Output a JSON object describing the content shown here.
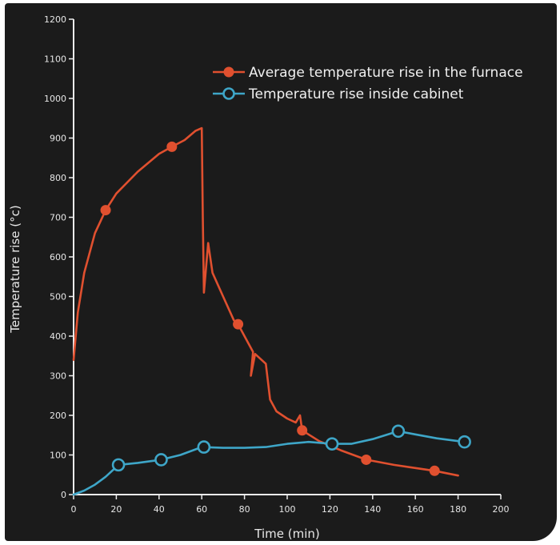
{
  "chart_data": {
    "type": "line",
    "title": "",
    "xlabel": "Time (min)",
    "ylabel": "Temperature rise (°c)",
    "xlim": [
      0,
      200
    ],
    "ylim": [
      0,
      1200
    ],
    "x_ticks": [
      0,
      20,
      40,
      60,
      80,
      100,
      120,
      140,
      160,
      180,
      200
    ],
    "y_ticks": [
      0,
      100,
      200,
      300,
      400,
      500,
      600,
      700,
      800,
      900,
      1000,
      1100,
      1200
    ],
    "grid": false,
    "legend_position": "top-right",
    "series": [
      {
        "name": "Average temperature rise in the furnace",
        "color": "#e0502f",
        "marker": "filled-circle",
        "curve": [
          [
            0,
            340
          ],
          [
            2,
            460
          ],
          [
            5,
            560
          ],
          [
            10,
            660
          ],
          [
            15,
            718
          ],
          [
            20,
            760
          ],
          [
            30,
            815
          ],
          [
            40,
            860
          ],
          [
            46,
            878
          ],
          [
            52,
            895
          ],
          [
            57,
            918
          ],
          [
            60,
            925
          ],
          [
            60.5,
            700
          ],
          [
            61,
            510
          ],
          [
            63,
            635
          ],
          [
            65,
            560
          ],
          [
            70,
            500
          ],
          [
            75,
            440
          ],
          [
            77,
            430
          ],
          [
            80,
            400
          ],
          [
            84,
            360
          ],
          [
            83,
            300
          ],
          [
            85,
            355
          ],
          [
            90,
            330
          ],
          [
            92,
            240
          ],
          [
            95,
            210
          ],
          [
            100,
            192
          ],
          [
            104,
            182
          ],
          [
            106,
            200
          ],
          [
            107,
            162
          ],
          [
            115,
            135
          ],
          [
            125,
            112
          ],
          [
            137,
            88
          ],
          [
            150,
            75
          ],
          [
            160,
            67
          ],
          [
            169,
            60
          ],
          [
            180,
            48
          ]
        ],
        "markers": [
          [
            15,
            718
          ],
          [
            46,
            878
          ],
          [
            77,
            430
          ],
          [
            107,
            162
          ],
          [
            137,
            88
          ],
          [
            169,
            60
          ]
        ]
      },
      {
        "name": "Temperature rise inside cabinet",
        "color": "#3ea6c8",
        "marker": "open-circle",
        "curve": [
          [
            0,
            0
          ],
          [
            5,
            10
          ],
          [
            10,
            25
          ],
          [
            15,
            45
          ],
          [
            21,
            75
          ],
          [
            30,
            80
          ],
          [
            41,
            88
          ],
          [
            50,
            100
          ],
          [
            60,
            120
          ],
          [
            70,
            118
          ],
          [
            80,
            118
          ],
          [
            90,
            120
          ],
          [
            100,
            128
          ],
          [
            110,
            133
          ],
          [
            121,
            128
          ],
          [
            130,
            128
          ],
          [
            140,
            140
          ],
          [
            152,
            160
          ],
          [
            160,
            152
          ],
          [
            170,
            142
          ],
          [
            183,
            133
          ]
        ],
        "markers": [
          [
            21,
            75
          ],
          [
            41,
            88
          ],
          [
            61,
            120
          ],
          [
            121,
            128
          ],
          [
            152,
            160
          ],
          [
            183,
            133
          ]
        ]
      }
    ]
  }
}
